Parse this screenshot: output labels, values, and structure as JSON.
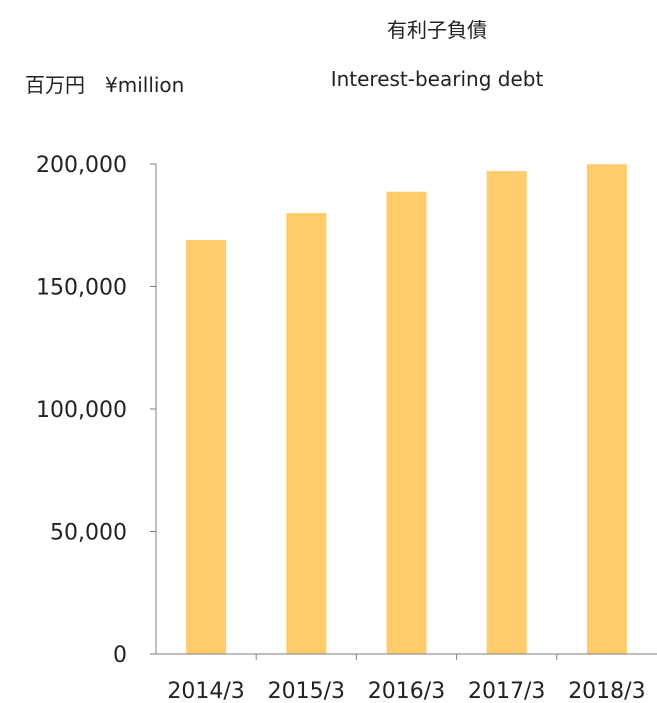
{
  "chart_data": {
    "type": "bar",
    "title": "有利子負債",
    "subtitle": "Interest-bearing debt",
    "ylabel": "百万円　¥million",
    "xlabel": "",
    "categories": [
      "2014/3",
      "2015/3",
      "2016/3",
      "2017/3",
      "2018/3"
    ],
    "values": [
      169000,
      180000,
      188700,
      197100,
      199900
    ],
    "ylim": [
      0,
      200000
    ],
    "yticks": [
      0,
      50000,
      100000,
      150000,
      200000
    ],
    "ytick_labels": [
      "0",
      "50,000",
      "100,000",
      "150,000",
      "200,000"
    ],
    "grid": false,
    "legend": "none",
    "bar_color": "#FFCB6B",
    "axis_color": "#7f7f7f"
  }
}
